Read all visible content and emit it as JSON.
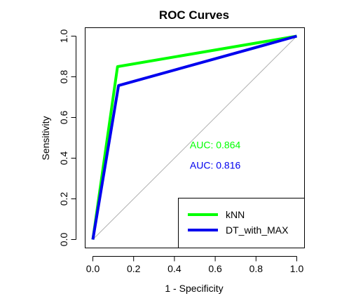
{
  "chart_data": {
    "type": "line",
    "title": "ROC Curves",
    "xlabel": "1 - Specificity",
    "ylabel": "Sensitivity",
    "xlim": [
      0,
      1
    ],
    "ylim": [
      0,
      1
    ],
    "x_ticks": [
      "0.0",
      "0.2",
      "0.4",
      "0.6",
      "0.8",
      "1.0"
    ],
    "y_ticks": [
      "0.0",
      "0.2",
      "0.4",
      "0.6",
      "0.8",
      "1.0"
    ],
    "grid": false,
    "reference_line": {
      "from": [
        0,
        0
      ],
      "to": [
        1,
        1
      ],
      "color": "#b0b0b0"
    },
    "series": [
      {
        "name": "kNN",
        "color": "#00ff00",
        "x": [
          0,
          0.121,
          1
        ],
        "y": [
          0,
          0.85,
          1
        ]
      },
      {
        "name": "DT_with_MAX",
        "color": "#0000ee",
        "x": [
          0,
          0.126,
          1
        ],
        "y": [
          0,
          0.757,
          1
        ]
      }
    ],
    "annotations": [
      {
        "text": "AUC: 0.864",
        "x": 0.6,
        "y": 0.465,
        "color": "#00ff00"
      },
      {
        "text": "AUC: 0.816",
        "x": 0.6,
        "y": 0.366,
        "color": "#0000ee"
      }
    ],
    "legend": {
      "position": "bottom-right"
    }
  }
}
